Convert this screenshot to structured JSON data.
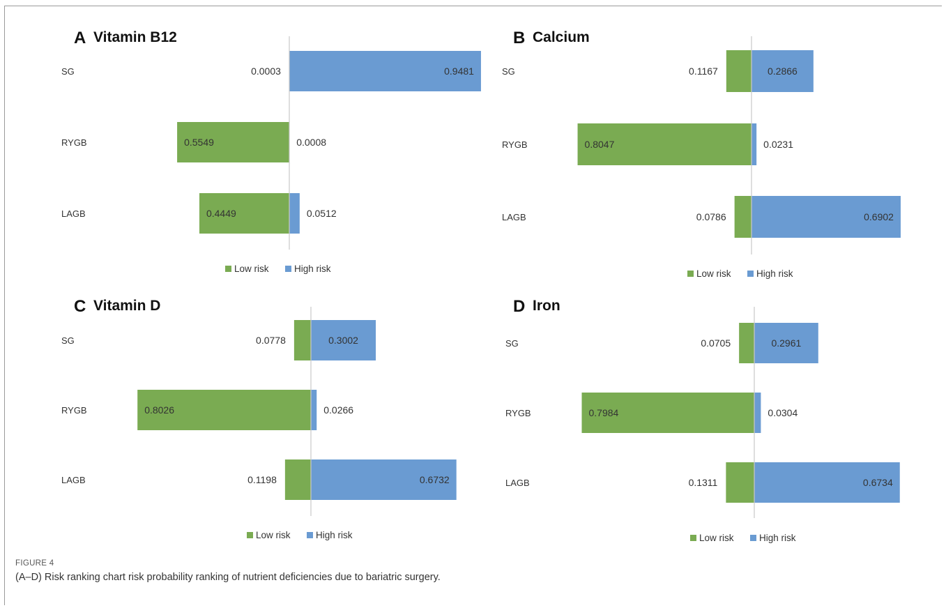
{
  "figure": {
    "label": "FIGURE 4",
    "caption": "(A–D) Risk ranking chart risk probability ranking of nutrient deficiencies due to bariatric surgery."
  },
  "colors": {
    "low": "#7aab52",
    "high": "#6a9bd2",
    "axis": "#c8c8c8",
    "text": "#333333"
  },
  "chart_data": [
    {
      "type": "bar",
      "orientation": "horizontal-diverging",
      "letter": "A",
      "title": "Vitamin B12",
      "categories": [
        "SG",
        "RYGB",
        "LAGB"
      ],
      "series": [
        {
          "name": "Low risk",
          "values": [
            0.0003,
            0.5549,
            0.4449
          ]
        },
        {
          "name": "High risk",
          "values": [
            0.9481,
            0.0008,
            0.0512
          ]
        }
      ],
      "legend": "bottom-center"
    },
    {
      "type": "bar",
      "orientation": "horizontal-diverging",
      "letter": "B",
      "title": "Calcium",
      "categories": [
        "SG",
        "RYGB",
        "LAGB"
      ],
      "series": [
        {
          "name": "Low risk",
          "values": [
            0.1167,
            0.8047,
            0.0786
          ]
        },
        {
          "name": "High risk",
          "values": [
            0.2866,
            0.0231,
            0.6902
          ]
        }
      ],
      "legend": "bottom-center"
    },
    {
      "type": "bar",
      "orientation": "horizontal-diverging",
      "letter": "C",
      "title": "Vitamin D",
      "categories": [
        "SG",
        "RYGB",
        "LAGB"
      ],
      "series": [
        {
          "name": "Low risk",
          "values": [
            0.0778,
            0.8026,
            0.1198
          ]
        },
        {
          "name": "High risk",
          "values": [
            0.3002,
            0.0266,
            0.6732
          ]
        }
      ],
      "legend": "bottom-center"
    },
    {
      "type": "bar",
      "orientation": "horizontal-diverging",
      "letter": "D",
      "title": "Iron",
      "categories": [
        "SG",
        "RYGB",
        "LAGB"
      ],
      "series": [
        {
          "name": "Low risk",
          "values": [
            0.0705,
            0.7984,
            0.1311
          ]
        },
        {
          "name": "High risk",
          "values": [
            0.2961,
            0.0304,
            0.6734
          ]
        }
      ],
      "legend": "bottom-center"
    }
  ]
}
